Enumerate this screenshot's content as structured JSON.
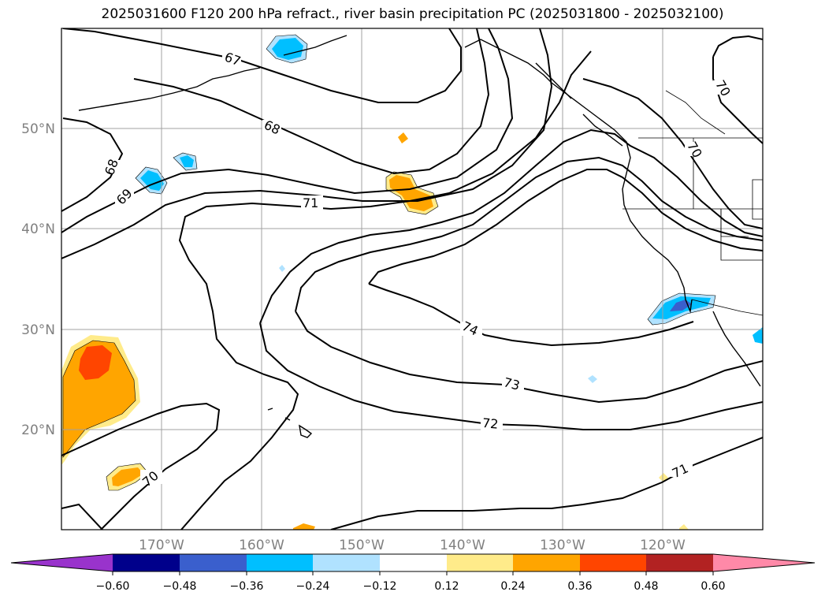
{
  "title": "2025031600 F120 200 hPa refract., river basin precipitation PC (2025031800 - 2025032100)",
  "map": {
    "lon_range": [
      -180,
      -110
    ],
    "lat_range": [
      10,
      60
    ],
    "lon_ticks": [
      {
        "lon": -170,
        "label": "170°W"
      },
      {
        "lon": -160,
        "label": "160°W"
      },
      {
        "lon": -150,
        "label": "150°W"
      },
      {
        "lon": -140,
        "label": "140°W"
      },
      {
        "lon": -130,
        "label": "130°W"
      },
      {
        "lon": -120,
        "label": "120°W"
      }
    ],
    "lat_ticks": [
      {
        "lat": 20,
        "label": "20°N"
      },
      {
        "lat": 30,
        "label": "30°N"
      },
      {
        "lat": 40,
        "label": "40°N"
      },
      {
        "lat": 50,
        "label": "50°N"
      }
    ],
    "gridlines": true,
    "contour_labels": [
      "67",
      "68",
      "68",
      "69",
      "70",
      "70",
      "71",
      "71",
      "72",
      "73",
      "74",
      "70"
    ],
    "colors": {
      "coast": "#000000",
      "grid": "#a0a0a0",
      "tick_label": "#808080"
    }
  },
  "colorbar": {
    "ticks": [
      "−0.60",
      "−0.48",
      "−0.36",
      "−0.24",
      "−0.12",
      "0.12",
      "0.24",
      "0.36",
      "0.48",
      "0.60"
    ],
    "segments": [
      "#9933cc",
      "#00008b",
      "#3a5fcd",
      "#00bfff",
      "#b0e2ff",
      "#ffffff",
      "#ffeb8a",
      "#ffa500",
      "#ff4500",
      "#b22222",
      "#ff89a8"
    ]
  }
}
